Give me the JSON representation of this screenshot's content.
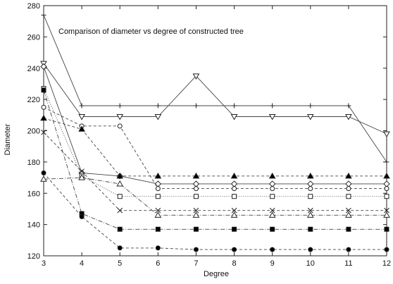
{
  "chart_data": {
    "type": "line",
    "title": "Comparison of diameter vs degree of constructed tree",
    "xlabel": "Degree",
    "ylabel": "Diameter",
    "x": [
      3,
      4,
      5,
      6,
      7,
      8,
      9,
      10,
      11,
      12
    ],
    "xlim": [
      3,
      12
    ],
    "ylim": [
      120,
      280
    ],
    "xticks": [
      "3",
      "4",
      "5",
      "6",
      "7",
      "8",
      "9",
      "10",
      "11",
      "12"
    ],
    "yticks": [
      "120",
      "140",
      "160",
      "180",
      "200",
      "220",
      "240",
      "260",
      "280"
    ],
    "grid": false,
    "legend": "none",
    "series": [
      {
        "marker": "plus",
        "dash": "solid",
        "values": [
          274,
          216,
          216,
          216,
          216,
          216,
          216,
          216,
          216,
          180
        ]
      },
      {
        "marker": "tri-down-open",
        "dash": "solid",
        "values": [
          243,
          209,
          209,
          209,
          235,
          209,
          209,
          209,
          209,
          198
        ]
      },
      {
        "marker": "diamond-open",
        "dash": "solid",
        "values": [
          241,
          173,
          171,
          166,
          166,
          166,
          166,
          166,
          166,
          166
        ]
      },
      {
        "marker": "circle-open",
        "dash": "dashed",
        "values": [
          215,
          203,
          203,
          163,
          163,
          163,
          163,
          163,
          163,
          163
        ]
      },
      {
        "marker": "tri-up-filled",
        "dash": "dashed",
        "values": [
          208,
          201,
          171,
          171,
          171,
          171,
          171,
          171,
          171,
          171
        ]
      },
      {
        "marker": "square-open",
        "dash": "dotted",
        "values": [
          227,
          171,
          158,
          158,
          158,
          158,
          158,
          158,
          158,
          158
        ]
      },
      {
        "marker": "x",
        "dash": "dashed",
        "values": [
          199,
          174,
          149,
          149,
          149,
          149,
          149,
          149,
          149,
          149
        ]
      },
      {
        "marker": "tri-up-open",
        "dash": "dashdot",
        "values": [
          169,
          170,
          166,
          146,
          146,
          146,
          146,
          146,
          146,
          146
        ]
      },
      {
        "marker": "square-filled",
        "dash": "dashdot",
        "values": [
          226,
          147,
          137,
          137,
          137,
          137,
          137,
          137,
          137,
          137
        ]
      },
      {
        "marker": "circle-filled",
        "dash": "dashed",
        "values": [
          173,
          145,
          125,
          125,
          124,
          124,
          124,
          124,
          124,
          124
        ]
      }
    ]
  }
}
